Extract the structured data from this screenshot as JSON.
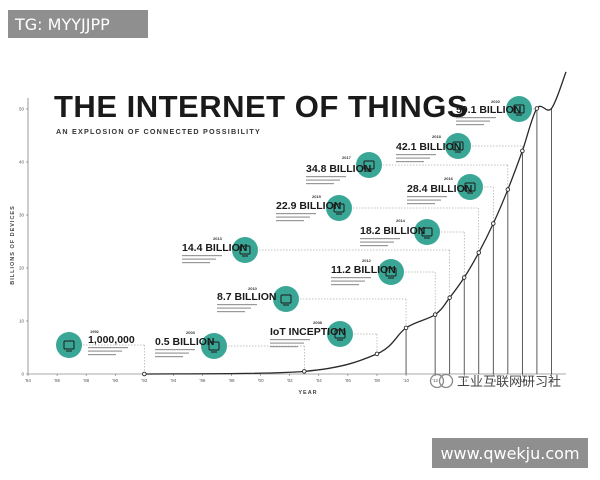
{
  "tg_badge": "TG: MYYJJPP",
  "url_badge": "www.qwekju.com",
  "watermark_text": "工业互联网研习社",
  "accent_color": "#3aa796",
  "line_color": "#2a2a2a",
  "chart_data": {
    "type": "line",
    "title": "THE INTERNET OF THINGS",
    "subtitle": "AN EXPLOSION OF CONNECTED POSSIBILITY",
    "ylabel": "BILLIONS OF DEVICES",
    "xlabel": "YEAR",
    "ylim": [
      0,
      60
    ],
    "yticks": [
      "0",
      "10",
      "20",
      "30",
      "40",
      "50",
      "60"
    ],
    "xlim": [
      1984,
      2021
    ],
    "xticks": [
      "'84",
      "'86",
      "'88",
      "'90",
      "'92",
      "'94",
      "'96",
      "'98",
      "'00",
      "'02",
      "'04",
      "'06",
      "'08",
      "'10",
      "'12",
      "'14",
      "'16",
      "'18",
      "'20"
    ],
    "grid": false,
    "series": [
      {
        "x": [
          1992,
          2003,
          2008,
          2010,
          2012,
          2013,
          2014,
          2015,
          2016,
          2017,
          2018,
          2019,
          2020,
          2021
        ],
        "y": [
          0.001,
          0.5,
          3.8,
          8.7,
          11.2,
          14.4,
          18.2,
          22.9,
          28.4,
          34.8,
          42.1,
          50.1,
          50.1,
          57
        ]
      }
    ],
    "annotations": [
      {
        "label": "1,000,000",
        "year": "1992",
        "icon": "computer-icon"
      },
      {
        "label": "0.5 BILLION",
        "year": "2003",
        "icon": "laptop-icon"
      },
      {
        "label": "IoT INCEPTION",
        "year": "2008",
        "icon": "lightbulb-icon"
      },
      {
        "label": "8.7 BILLION",
        "year": "2010",
        "icon": "phone-icon"
      },
      {
        "label": "11.2 BILLION",
        "year": "2012",
        "icon": "keyboard-icon"
      },
      {
        "label": "14.4 BILLION",
        "year": "2013",
        "icon": "wind-turbine-icon"
      },
      {
        "label": "18.2 BILLION",
        "year": "2014",
        "icon": "thermometer-icon"
      },
      {
        "label": "22.9 BILLION",
        "year": "2015",
        "icon": "traffic-light-icon"
      },
      {
        "label": "28.4 BILLION",
        "year": "2016",
        "icon": "tv-icon"
      },
      {
        "label": "34.8 BILLION",
        "year": "2017",
        "icon": "monitor-icon"
      },
      {
        "label": "42.1 BILLION",
        "year": "2018",
        "icon": "power-outlet-icon"
      },
      {
        "label": "50.1 BILLION",
        "year": "2020",
        "icon": "door-lock-icon"
      }
    ]
  }
}
